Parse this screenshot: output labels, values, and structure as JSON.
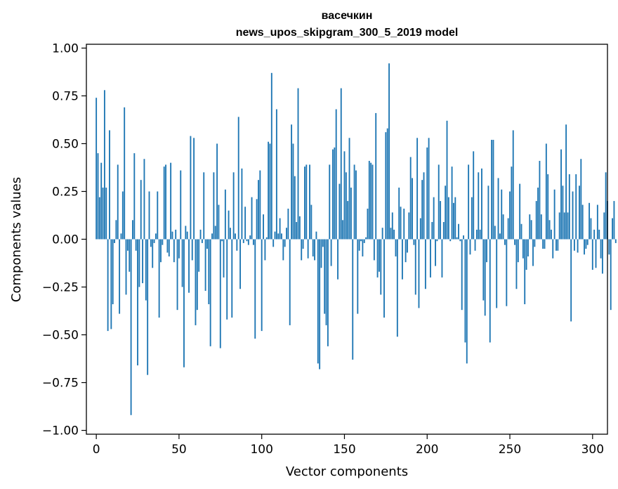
{
  "chart_data": {
    "type": "bar",
    "title": "васечкин",
    "subtitle": "news_upos_skipgram_300_5_2019 model",
    "xlabel": "Vector components",
    "ylabel": "Components values",
    "xlim": [
      -6,
      309
    ],
    "ylim": [
      -1.02,
      1.02
    ],
    "xticks": [
      "0",
      "50",
      "100",
      "150",
      "200",
      "250",
      "300"
    ],
    "yticks": [
      "−1.00",
      "−0.75",
      "−0.50",
      "−0.25",
      "0.00",
      "0.25",
      "0.50",
      "0.75",
      "1.00"
    ],
    "bar_color": "#1f77b4",
    "grid": false,
    "x_start": 0,
    "values": [
      0.74,
      0.45,
      0.22,
      0.4,
      0.27,
      0.78,
      0.27,
      -0.48,
      0.57,
      -0.47,
      -0.34,
      -0.02,
      0.1,
      0.39,
      -0.39,
      0.03,
      0.25,
      0.69,
      -0.29,
      -0.06,
      -0.17,
      -0.92,
      0.1,
      0.45,
      -0.06,
      -0.66,
      -0.25,
      0.31,
      -0.23,
      0.42,
      -0.32,
      -0.71,
      0.25,
      -0.04,
      -0.15,
      -0.02,
      0.03,
      0.25,
      -0.41,
      -0.12,
      -0.03,
      0.38,
      0.39,
      -0.07,
      -0.09,
      0.4,
      0.04,
      -0.12,
      0.05,
      -0.37,
      -0.1,
      0.36,
      -0.25,
      -0.67,
      0.07,
      0.04,
      -0.28,
      0.54,
      -0.11,
      0.53,
      -0.45,
      -0.37,
      -0.17,
      0.05,
      -0.02,
      0.35,
      -0.27,
      -0.05,
      -0.34,
      -0.56,
      0.03,
      0.35,
      0.07,
      0.5,
      0.18,
      -0.57,
      -0.01,
      -0.2,
      0.26,
      -0.42,
      0.15,
      0.06,
      -0.41,
      0.35,
      0.03,
      -0.06,
      0.64,
      -0.26,
      0.37,
      -0.02,
      0.17,
      -0.01,
      -0.03,
      0.02,
      0.22,
      -0.03,
      -0.52,
      0.21,
      0.31,
      0.36,
      -0.48,
      0.13,
      -0.11,
      0.01,
      0.51,
      0.5,
      0.87,
      -0.04,
      0.04,
      0.68,
      0.03,
      0.11,
      0.03,
      -0.11,
      -0.04,
      0.06,
      0.16,
      -0.45,
      0.6,
      0.5,
      0.33,
      0.09,
      0.79,
      0.12,
      -0.11,
      -0.05,
      0.38,
      0.39,
      -0.1,
      0.39,
      0.18,
      -0.09,
      -0.11,
      0.04,
      -0.65,
      -0.68,
      -0.15,
      -0.04,
      -0.39,
      -0.45,
      -0.56,
      0.39,
      -0.14,
      0.47,
      0.48,
      0.68,
      -0.21,
      0.29,
      0.79,
      0.1,
      0.46,
      0.35,
      0.2,
      0.53,
      0.27,
      -0.63,
      0.39,
      0.36,
      -0.39,
      -0.06,
      -0.01,
      -0.09,
      -0.02,
      0.01,
      0.16,
      0.41,
      0.4,
      0.39,
      -0.11,
      0.66,
      -0.2,
      -0.17,
      -0.29,
      0.06,
      -0.41,
      0.56,
      0.58,
      0.92,
      0.06,
      0.14,
      0.05,
      -0.09,
      -0.51,
      0.27,
      0.17,
      -0.21,
      0.16,
      -0.12,
      -0.07,
      0.14,
      0.43,
      0.32,
      -0.03,
      -0.29,
      0.53,
      -0.36,
      0.11,
      0.31,
      0.35,
      -0.26,
      0.48,
      0.53,
      -0.2,
      0.09,
      0.22,
      -0.14,
      -0.01,
      0.39,
      0.2,
      -0.2,
      0.09,
      0.28,
      0.62,
      0.22,
      -0.01,
      0.38,
      0.19,
      0.22,
      0.01,
      0.08,
      -0.01,
      -0.37,
      0.02,
      -0.54,
      -0.65,
      0.39,
      -0.08,
      0.22,
      0.46,
      -0.06,
      0.05,
      0.35,
      0.05,
      0.37,
      -0.32,
      -0.4,
      -0.12,
      0.28,
      -0.54,
      0.52,
      0.52,
      0.07,
      -0.36,
      0.32,
      0.03,
      0.26,
      0.13,
      -0.03,
      -0.35,
      0.11,
      0.25,
      0.38,
      0.57,
      -0.03,
      -0.26,
      -0.12,
      0.29,
      0.08,
      -0.1,
      -0.34,
      -0.16,
      -0.09,
      0.13,
      0.1,
      -0.14,
      -0.04,
      0.2,
      0.27,
      0.41,
      0.13,
      -0.05,
      -0.05,
      0.5,
      0.34,
      0.1,
      0.05,
      -0.1,
      0.26,
      -0.06,
      -0.06,
      0.14,
      0.47,
      0.28,
      0.14,
      0.6,
      0.14,
      0.34,
      -0.43,
      0.25,
      -0.06,
      0.34,
      -0.07,
      0.28,
      0.42,
      0.18,
      -0.08,
      -0.05,
      -0.03,
      0.19,
      0.11,
      -0.16,
      0.05,
      -0.15,
      0.18,
      0.05,
      -0.1,
      -0.18,
      0.14,
      0.35,
      0.2,
      -0.08,
      -0.37,
      0.11,
      0.2,
      -0.02
    ]
  }
}
